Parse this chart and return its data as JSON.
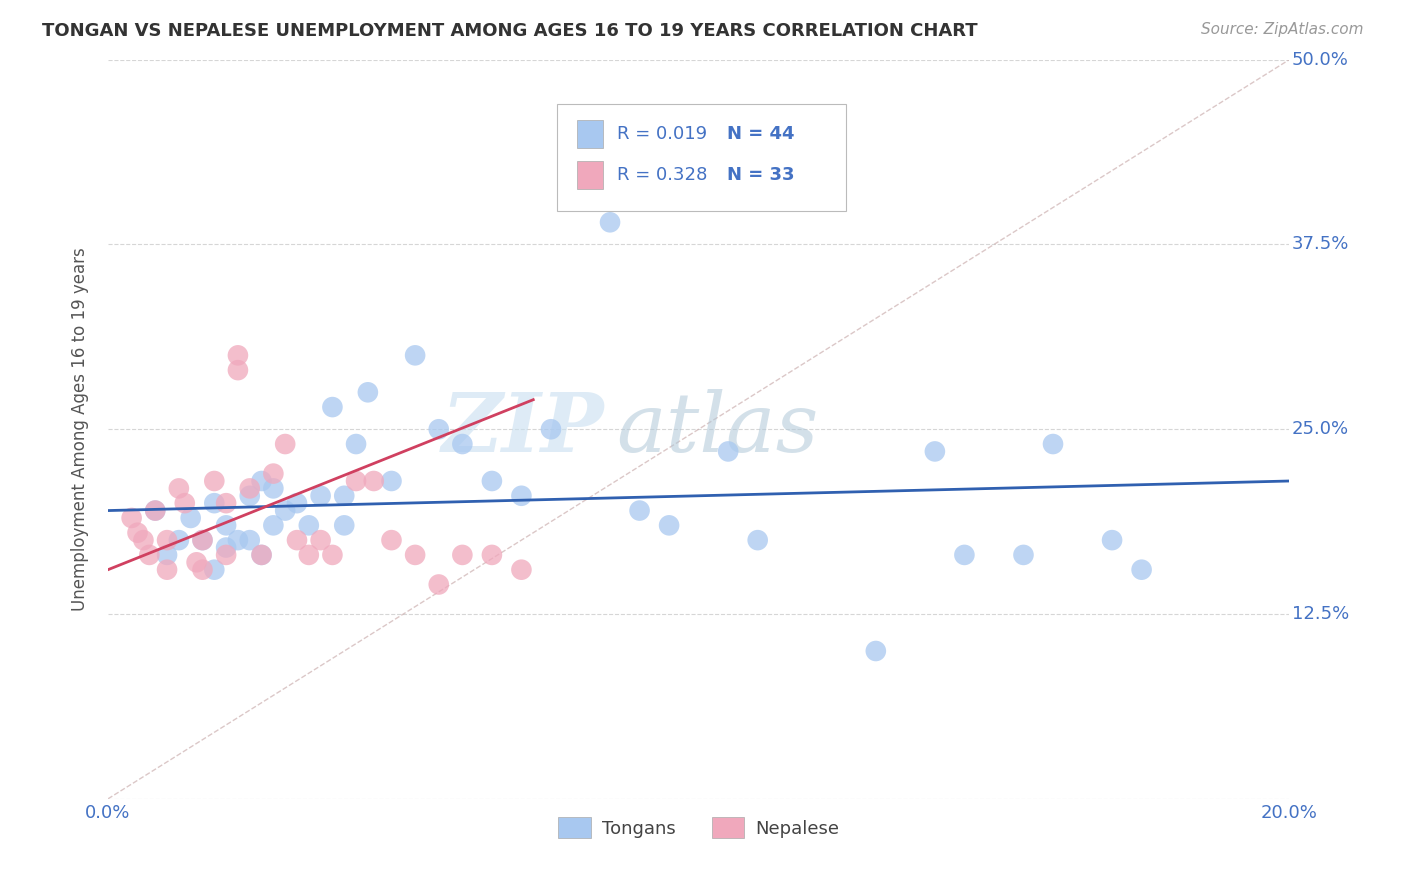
{
  "title": "TONGAN VS NEPALESE UNEMPLOYMENT AMONG AGES 16 TO 19 YEARS CORRELATION CHART",
  "source": "Source: ZipAtlas.com",
  "ylabel": "Unemployment Among Ages 16 to 19 years",
  "xlim": [
    0.0,
    0.2
  ],
  "ylim": [
    0.0,
    0.5
  ],
  "legend_tongans_R": "0.019",
  "legend_tongans_N": "44",
  "legend_nepalese_R": "0.328",
  "legend_nepalese_N": "33",
  "color_tongans": "#a8c8f0",
  "color_nepalese": "#f0a8bc",
  "color_trend_tongans": "#3060b0",
  "color_trend_nepalese": "#d04060",
  "watermark_zip": "ZIP",
  "watermark_atlas": "atlas",
  "tongans_x": [
    0.008,
    0.01,
    0.012,
    0.014,
    0.016,
    0.018,
    0.018,
    0.02,
    0.02,
    0.022,
    0.024,
    0.024,
    0.026,
    0.026,
    0.028,
    0.028,
    0.03,
    0.032,
    0.034,
    0.036,
    0.038,
    0.04,
    0.04,
    0.042,
    0.044,
    0.048,
    0.052,
    0.056,
    0.06,
    0.065,
    0.07,
    0.075,
    0.085,
    0.09,
    0.095,
    0.105,
    0.11,
    0.13,
    0.14,
    0.145,
    0.155,
    0.16,
    0.17,
    0.175
  ],
  "tongans_y": [
    0.195,
    0.165,
    0.175,
    0.19,
    0.175,
    0.155,
    0.2,
    0.17,
    0.185,
    0.175,
    0.175,
    0.205,
    0.165,
    0.215,
    0.21,
    0.185,
    0.195,
    0.2,
    0.185,
    0.205,
    0.265,
    0.185,
    0.205,
    0.24,
    0.275,
    0.215,
    0.3,
    0.25,
    0.24,
    0.215,
    0.205,
    0.25,
    0.39,
    0.195,
    0.185,
    0.235,
    0.175,
    0.1,
    0.235,
    0.165,
    0.165,
    0.24,
    0.175,
    0.155
  ],
  "nepalese_x": [
    0.004,
    0.005,
    0.006,
    0.007,
    0.008,
    0.01,
    0.01,
    0.012,
    0.013,
    0.015,
    0.016,
    0.016,
    0.018,
    0.02,
    0.02,
    0.022,
    0.022,
    0.024,
    0.026,
    0.028,
    0.03,
    0.032,
    0.034,
    0.036,
    0.038,
    0.042,
    0.045,
    0.048,
    0.052,
    0.056,
    0.06,
    0.065,
    0.07
  ],
  "nepalese_y": [
    0.19,
    0.18,
    0.175,
    0.165,
    0.195,
    0.175,
    0.155,
    0.21,
    0.2,
    0.16,
    0.175,
    0.155,
    0.215,
    0.165,
    0.2,
    0.29,
    0.3,
    0.21,
    0.165,
    0.22,
    0.24,
    0.175,
    0.165,
    0.175,
    0.165,
    0.215,
    0.215,
    0.175,
    0.165,
    0.145,
    0.165,
    0.165,
    0.155
  ]
}
